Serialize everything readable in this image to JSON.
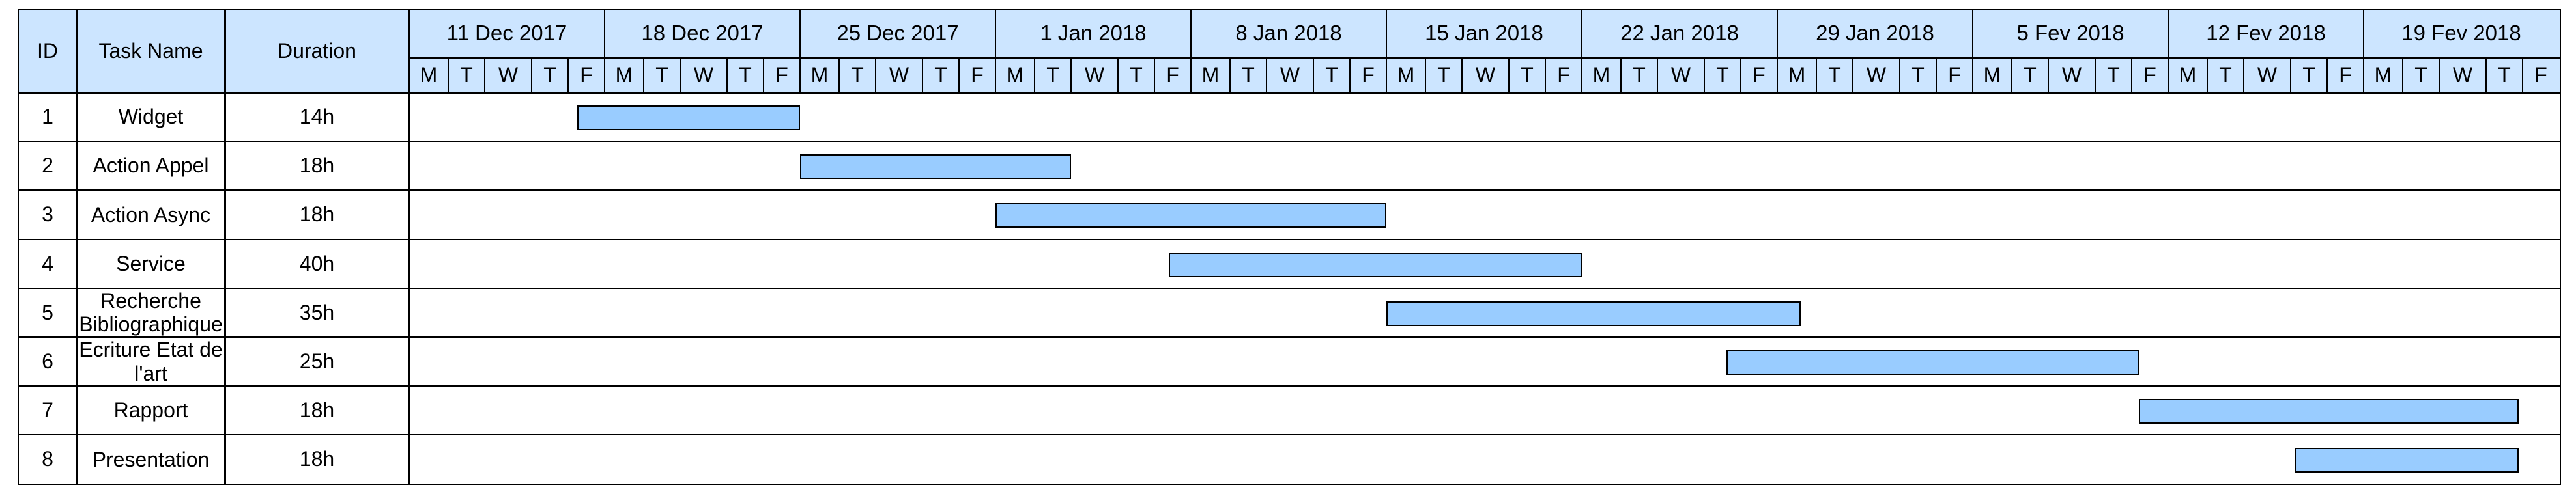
{
  "columns": {
    "id": "ID",
    "task": "Task Name",
    "duration": "Duration"
  },
  "weeks": [
    "11 Dec 2017",
    "18 Dec 2017",
    "25 Dec 2017",
    "1 Jan 2018",
    "8 Jan 2018",
    "15 Jan 2018",
    "22 Jan 2018",
    "29 Jan 2018",
    "5 Fev 2018",
    "12 Fev 2018",
    "19 Fev 2018"
  ],
  "weekdays": [
    "M",
    "T",
    "W",
    "T",
    "F"
  ],
  "tasks": [
    {
      "id": "1",
      "name": "Widget",
      "duration": "14h",
      "start_day": 4.25,
      "end_day": 10.0
    },
    {
      "id": "2",
      "name": "Action Appel",
      "duration": "18h",
      "start_day": 10.0,
      "end_day": 17.0
    },
    {
      "id": "3",
      "name": "Action Async",
      "duration": "18h",
      "start_day": 15.0,
      "end_day": 25.0
    },
    {
      "id": "4",
      "name": "Service",
      "duration": "40h",
      "start_day": 19.4,
      "end_day": 30.0
    },
    {
      "id": "5",
      "name": "Recherche Bibliographique",
      "duration": "35h",
      "start_day": 25.0,
      "end_day": 35.6
    },
    {
      "id": "6",
      "name": "Ecriture Etat de l'art",
      "duration": "25h",
      "start_day": 33.6,
      "end_day": 44.2
    },
    {
      "id": "7",
      "name": "Rapport",
      "duration": "18h",
      "start_day": 44.2,
      "end_day": 53.9
    },
    {
      "id": "8",
      "name": "Presentation",
      "duration": "18h",
      "start_day": 48.1,
      "end_day": 53.9
    }
  ],
  "colors": {
    "header": "#cce5ff",
    "bar": "#99ccff",
    "grid": "#000000"
  }
}
